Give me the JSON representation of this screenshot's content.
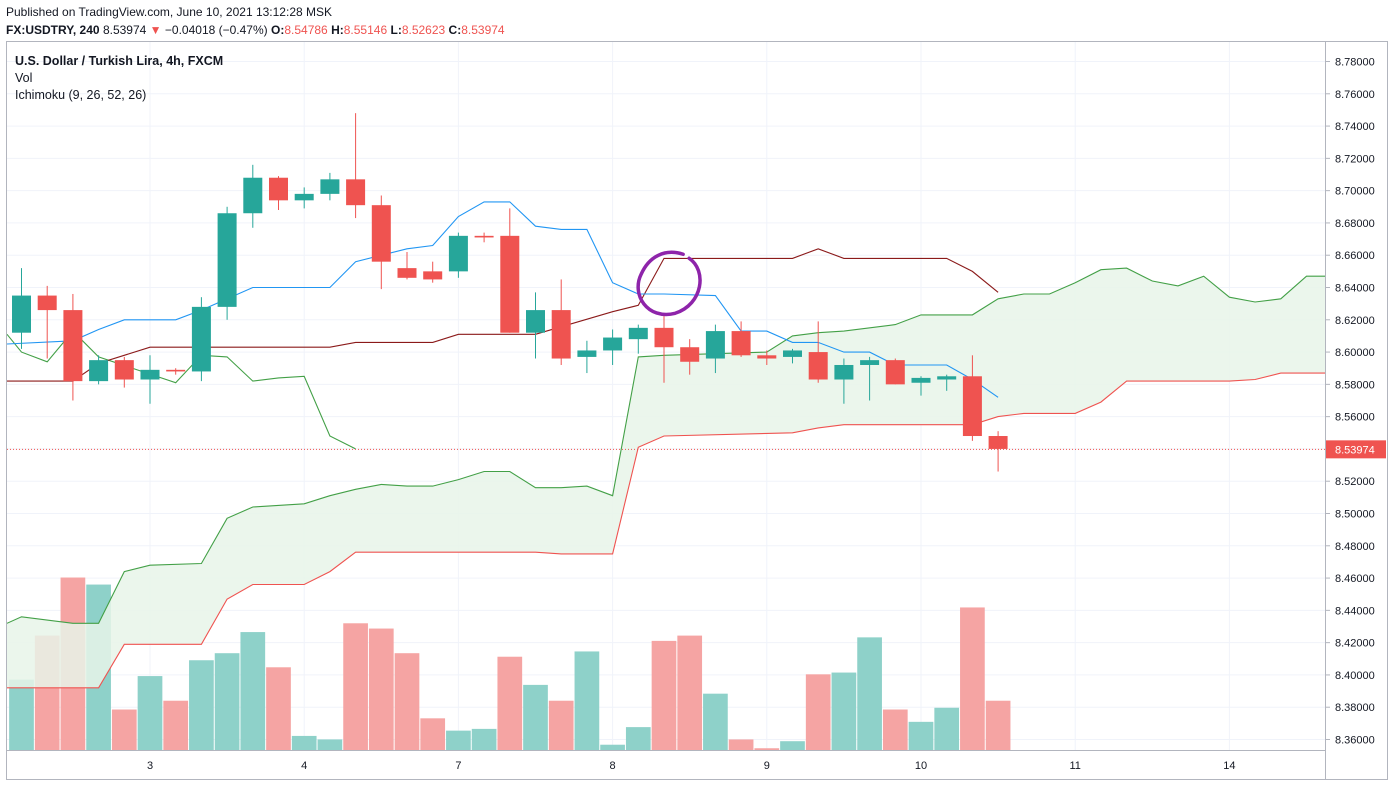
{
  "header": {
    "published": "Published on TradingView.com, June 10, 2021 13:12:28 MSK",
    "symbol": "FX:USDTRY, 240",
    "last": "8.53974",
    "change_arrow": "▼",
    "change": "−0.04018 (−0.47%)",
    "o_label": "O:",
    "o": "8.54786",
    "h_label": "H:",
    "h": "8.55146",
    "l_label": "L:",
    "l": "8.52623",
    "c_label": "C:",
    "c": "8.53974"
  },
  "legend": {
    "title": "U.S. Dollar / Turkish Lira, 4h, FXCM",
    "vol": "Vol",
    "ichimoku": "Ichimoku (9, 26, 52, 26)"
  },
  "colors": {
    "up": "#26a69a",
    "down": "#ef5350",
    "vol_up": "#8ed1c9",
    "vol_down": "#f5a4a3",
    "conversion": "#2196f3",
    "base": "#8b1a1a",
    "span_a": "#43a047",
    "span_b": "#ef5350",
    "cloud": "#e8f5e9",
    "annotation": "#8e24aa",
    "last_price_bg": "#ef5350"
  },
  "chart_data": {
    "type": "candlestick",
    "interval": "4h",
    "ylim": [
      8.355,
      8.79
    ],
    "y_ticks": [
      "8.78000",
      "8.76000",
      "8.74000",
      "8.72000",
      "8.70000",
      "8.68000",
      "8.66000",
      "8.64000",
      "8.62000",
      "8.60000",
      "8.58000",
      "8.56000",
      "8.54000",
      "8.52000",
      "8.50000",
      "8.48000",
      "8.46000",
      "8.44000",
      "8.42000",
      "8.40000",
      "8.38000",
      "8.36000"
    ],
    "x_ticks": [
      {
        "label": "3",
        "bar": 5
      },
      {
        "label": "4",
        "bar": 11
      },
      {
        "label": "7",
        "bar": 17
      },
      {
        "label": "8",
        "bar": 23
      },
      {
        "label": "9",
        "bar": 29
      },
      {
        "label": "10",
        "bar": 35
      },
      {
        "label": "11",
        "bar": 41
      },
      {
        "label": "14",
        "bar": 47
      }
    ],
    "last_price": "8.53974",
    "candles": [
      {
        "o": 8.612,
        "h": 8.652,
        "l": 8.602,
        "c": 8.635
      },
      {
        "o": 8.635,
        "h": 8.641,
        "l": 8.596,
        "c": 8.626
      },
      {
        "o": 8.626,
        "h": 8.636,
        "l": 8.57,
        "c": 8.582
      },
      {
        "o": 8.582,
        "h": 8.598,
        "l": 8.58,
        "c": 8.595
      },
      {
        "o": 8.595,
        "h": 8.597,
        "l": 8.578,
        "c": 8.583
      },
      {
        "o": 8.583,
        "h": 8.598,
        "l": 8.568,
        "c": 8.589
      },
      {
        "o": 8.589,
        "h": 8.59,
        "l": 8.586,
        "c": 8.588
      },
      {
        "o": 8.588,
        "h": 8.634,
        "l": 8.582,
        "c": 8.628
      },
      {
        "o": 8.628,
        "h": 8.69,
        "l": 8.62,
        "c": 8.686
      },
      {
        "o": 8.686,
        "h": 8.716,
        "l": 8.677,
        "c": 8.708
      },
      {
        "o": 8.708,
        "h": 8.709,
        "l": 8.688,
        "c": 8.694
      },
      {
        "o": 8.694,
        "h": 8.702,
        "l": 8.689,
        "c": 8.698
      },
      {
        "o": 8.698,
        "h": 8.711,
        "l": 8.694,
        "c": 8.707
      },
      {
        "o": 8.707,
        "h": 8.748,
        "l": 8.683,
        "c": 8.691
      },
      {
        "o": 8.691,
        "h": 8.697,
        "l": 8.639,
        "c": 8.656
      },
      {
        "o": 8.652,
        "h": 8.662,
        "l": 8.645,
        "c": 8.646
      },
      {
        "o": 8.65,
        "h": 8.656,
        "l": 8.643,
        "c": 8.645
      },
      {
        "o": 8.65,
        "h": 8.674,
        "l": 8.646,
        "c": 8.672
      },
      {
        "o": 8.672,
        "h": 8.674,
        "l": 8.668,
        "c": 8.671
      },
      {
        "o": 8.672,
        "h": 8.689,
        "l": 8.612,
        "c": 8.612
      },
      {
        "o": 8.612,
        "h": 8.637,
        "l": 8.596,
        "c": 8.626
      },
      {
        "o": 8.626,
        "h": 8.645,
        "l": 8.592,
        "c": 8.596
      },
      {
        "o": 8.597,
        "h": 8.607,
        "l": 8.587,
        "c": 8.601
      },
      {
        "o": 8.601,
        "h": 8.614,
        "l": 8.592,
        "c": 8.609
      },
      {
        "o": 8.608,
        "h": 8.617,
        "l": 8.599,
        "c": 8.615
      },
      {
        "o": 8.615,
        "h": 8.624,
        "l": 8.581,
        "c": 8.603
      },
      {
        "o": 8.603,
        "h": 8.608,
        "l": 8.586,
        "c": 8.594
      },
      {
        "o": 8.596,
        "h": 8.617,
        "l": 8.587,
        "c": 8.613
      },
      {
        "o": 8.613,
        "h": 8.619,
        "l": 8.597,
        "c": 8.598
      },
      {
        "o": 8.598,
        "h": 8.601,
        "l": 8.592,
        "c": 8.596
      },
      {
        "o": 8.597,
        "h": 8.602,
        "l": 8.593,
        "c": 8.601
      },
      {
        "o": 8.6,
        "h": 8.619,
        "l": 8.581,
        "c": 8.583
      },
      {
        "o": 8.583,
        "h": 8.596,
        "l": 8.568,
        "c": 8.592
      },
      {
        "o": 8.592,
        "h": 8.597,
        "l": 8.57,
        "c": 8.595
      },
      {
        "o": 8.595,
        "h": 8.596,
        "l": 8.58,
        "c": 8.58
      },
      {
        "o": 8.581,
        "h": 8.585,
        "l": 8.573,
        "c": 8.584
      },
      {
        "o": 8.583,
        "h": 8.586,
        "l": 8.576,
        "c": 8.585
      },
      {
        "o": 8.585,
        "h": 8.598,
        "l": 8.545,
        "c": 8.548
      },
      {
        "o": 8.548,
        "h": 8.551,
        "l": 8.526,
        "c": 8.54
      }
    ],
    "volume": [
      {
        "v": 0.4,
        "up": true
      },
      {
        "v": 0.65,
        "up": false
      },
      {
        "v": 0.98,
        "up": false
      },
      {
        "v": 0.94,
        "up": true
      },
      {
        "v": 0.23,
        "up": false
      },
      {
        "v": 0.42,
        "up": true
      },
      {
        "v": 0.28,
        "up": false
      },
      {
        "v": 0.51,
        "up": true
      },
      {
        "v": 0.55,
        "up": true
      },
      {
        "v": 0.67,
        "up": true
      },
      {
        "v": 0.47,
        "up": false
      },
      {
        "v": 0.08,
        "up": true
      },
      {
        "v": 0.06,
        "up": true
      },
      {
        "v": 0.72,
        "up": false
      },
      {
        "v": 0.69,
        "up": false
      },
      {
        "v": 0.55,
        "up": false
      },
      {
        "v": 0.18,
        "up": false
      },
      {
        "v": 0.11,
        "up": true
      },
      {
        "v": 0.12,
        "up": true
      },
      {
        "v": 0.53,
        "up": false
      },
      {
        "v": 0.37,
        "up": true
      },
      {
        "v": 0.28,
        "up": false
      },
      {
        "v": 0.56,
        "up": true
      },
      {
        "v": 0.03,
        "up": true
      },
      {
        "v": 0.13,
        "up": true
      },
      {
        "v": 0.62,
        "up": false
      },
      {
        "v": 0.65,
        "up": false
      },
      {
        "v": 0.32,
        "up": true
      },
      {
        "v": 0.06,
        "up": false
      },
      {
        "v": 0.01,
        "up": false
      },
      {
        "v": 0.05,
        "up": true
      },
      {
        "v": 0.43,
        "up": false
      },
      {
        "v": 0.44,
        "up": true
      },
      {
        "v": 0.64,
        "up": true
      },
      {
        "v": 0.23,
        "up": false
      },
      {
        "v": 0.16,
        "up": true
      },
      {
        "v": 0.24,
        "up": true
      },
      {
        "v": 0.81,
        "up": false
      },
      {
        "v": 0.28,
        "up": false
      }
    ],
    "conversion_line": [
      [
        -1,
        8.605
      ],
      [
        2,
        8.607
      ],
      [
        3,
        8.614
      ],
      [
        4,
        8.62
      ],
      [
        6,
        8.62
      ],
      [
        7,
        8.626
      ],
      [
        9,
        8.64
      ],
      [
        12,
        8.64
      ],
      [
        13,
        8.656
      ],
      [
        15,
        8.664
      ],
      [
        16,
        8.666
      ],
      [
        17,
        8.684
      ],
      [
        18,
        8.693
      ],
      [
        19,
        8.693
      ],
      [
        20,
        8.678
      ],
      [
        21,
        8.676
      ],
      [
        22,
        8.676
      ],
      [
        23,
        8.643
      ],
      [
        24,
        8.636
      ],
      [
        25,
        8.636
      ],
      [
        27,
        8.635
      ],
      [
        28,
        8.613
      ],
      [
        29,
        8.613
      ],
      [
        30,
        8.606
      ],
      [
        31,
        8.606
      ],
      [
        32,
        8.6
      ],
      [
        33,
        8.6
      ],
      [
        34,
        8.592
      ],
      [
        36,
        8.592
      ],
      [
        37,
        8.583
      ],
      [
        38,
        8.572
      ]
    ],
    "base_line": [
      [
        -1,
        8.582
      ],
      [
        2,
        8.582
      ],
      [
        3,
        8.593
      ],
      [
        5,
        8.603
      ],
      [
        12,
        8.603
      ],
      [
        13,
        8.606
      ],
      [
        16,
        8.606
      ],
      [
        17,
        8.611
      ],
      [
        20,
        8.611
      ],
      [
        23,
        8.625
      ],
      [
        24,
        8.629
      ],
      [
        25,
        8.658
      ],
      [
        30,
        8.658
      ],
      [
        31,
        8.664
      ],
      [
        32,
        8.658
      ],
      [
        36,
        8.658
      ],
      [
        37,
        8.65
      ],
      [
        38,
        8.637
      ]
    ],
    "lagging_span": [
      [
        -1,
        8.611
      ],
      [
        0,
        8.6
      ],
      [
        1,
        8.594
      ],
      [
        2,
        8.613
      ],
      [
        3,
        8.597
      ],
      [
        6,
        8.581
      ],
      [
        7,
        8.598
      ],
      [
        8,
        8.597
      ],
      [
        9,
        8.582
      ],
      [
        10,
        8.584
      ],
      [
        11,
        8.585
      ],
      [
        12,
        8.548
      ],
      [
        13,
        8.54
      ]
    ],
    "span_a": [
      [
        -1,
        8.432
      ],
      [
        0,
        8.436
      ],
      [
        2,
        8.432
      ],
      [
        3,
        8.432
      ],
      [
        4,
        8.464
      ],
      [
        5,
        8.468
      ],
      [
        7,
        8.469
      ],
      [
        8,
        8.497
      ],
      [
        9,
        8.504
      ],
      [
        11,
        8.506
      ],
      [
        12,
        8.511
      ],
      [
        13,
        8.515
      ],
      [
        14,
        8.518
      ],
      [
        15,
        8.517
      ],
      [
        16,
        8.517
      ],
      [
        17,
        8.521
      ],
      [
        18,
        8.526
      ],
      [
        19,
        8.526
      ],
      [
        20,
        8.516
      ],
      [
        21,
        8.516
      ],
      [
        22,
        8.517
      ],
      [
        23,
        8.511
      ],
      [
        24,
        8.597
      ],
      [
        25,
        8.598
      ],
      [
        29,
        8.6
      ],
      [
        30,
        8.61
      ],
      [
        31,
        8.612
      ],
      [
        32,
        8.613
      ],
      [
        34,
        8.617
      ],
      [
        35,
        8.623
      ],
      [
        37,
        8.623
      ],
      [
        38,
        8.633
      ],
      [
        39,
        8.636
      ],
      [
        40,
        8.636
      ],
      [
        41,
        8.643
      ],
      [
        42,
        8.651
      ],
      [
        43,
        8.652
      ],
      [
        44,
        8.644
      ],
      [
        45,
        8.641
      ],
      [
        46,
        8.647
      ],
      [
        47,
        8.634
      ],
      [
        48,
        8.631
      ],
      [
        49,
        8.633
      ],
      [
        50,
        8.647
      ],
      [
        51,
        8.647
      ]
    ],
    "span_b": [
      [
        -1,
        8.392
      ],
      [
        0,
        8.392
      ],
      [
        2,
        8.392
      ],
      [
        3,
        8.392
      ],
      [
        4,
        8.419
      ],
      [
        5,
        8.419
      ],
      [
        7,
        8.419
      ],
      [
        8,
        8.447
      ],
      [
        9,
        8.456
      ],
      [
        11,
        8.456
      ],
      [
        12,
        8.464
      ],
      [
        13,
        8.476
      ],
      [
        20,
        8.476
      ],
      [
        21,
        8.475
      ],
      [
        23,
        8.475
      ],
      [
        24,
        8.541
      ],
      [
        25,
        8.548
      ],
      [
        30,
        8.55
      ],
      [
        31,
        8.553
      ],
      [
        32,
        8.555
      ],
      [
        37,
        8.555
      ],
      [
        38,
        8.56
      ],
      [
        39,
        8.562
      ],
      [
        41,
        8.562
      ],
      [
        42,
        8.569
      ],
      [
        43,
        8.582
      ],
      [
        44,
        8.582
      ],
      [
        47,
        8.582
      ],
      [
        48,
        8.583
      ],
      [
        49,
        8.587
      ],
      [
        50,
        8.587
      ],
      [
        51,
        8.587
      ]
    ]
  }
}
